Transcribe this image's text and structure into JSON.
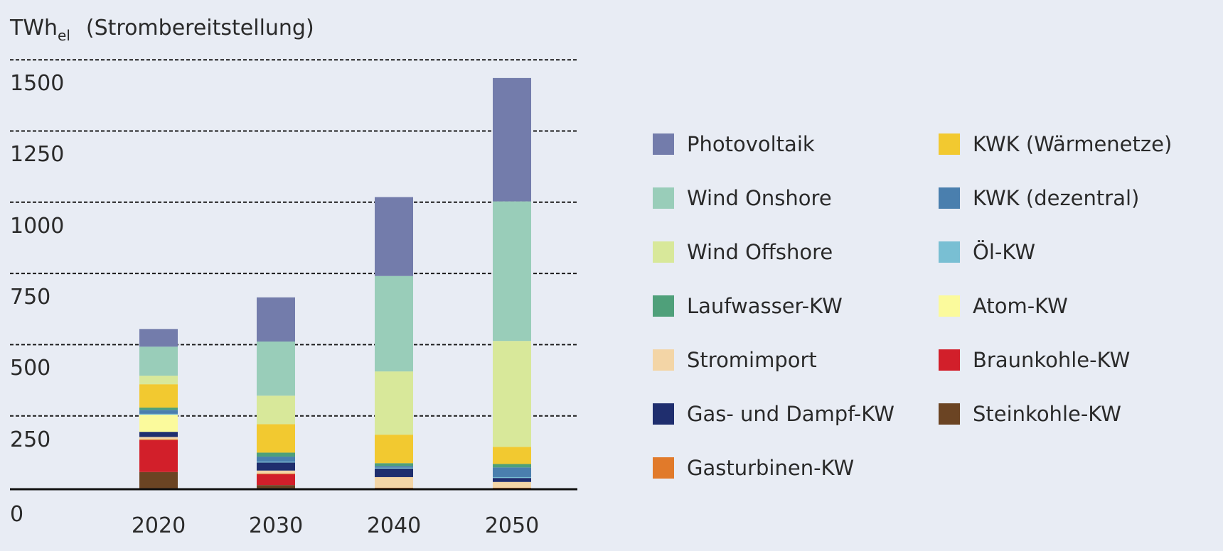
{
  "header": {
    "unit": "TWh",
    "unit_sub": "el",
    "subtitle": "(Strombereitstellung)"
  },
  "chart_data": {
    "type": "bar",
    "stacked": true,
    "categories": [
      "2020",
      "2030",
      "2040",
      "2050"
    ],
    "ylim": [
      0,
      1600
    ],
    "yticks": [
      0,
      250,
      500,
      750,
      1000,
      1250,
      1500
    ],
    "ytick_labels": [
      "0",
      "250",
      "500",
      "750",
      "1000",
      "1250",
      "1500"
    ],
    "grid": true,
    "legend_position": "right",
    "series": [
      {
        "name": "Steinkohle-KW",
        "color": "#6b4423",
        "values": [
          58,
          12,
          0,
          0
        ]
      },
      {
        "name": "Braunkohle-KW",
        "color": "#d21f2a",
        "values": [
          112,
          38,
          0,
          0
        ]
      },
      {
        "name": "Gasturbinen-KW",
        "color": "#e17a2a",
        "values": [
          3,
          3,
          3,
          3
        ]
      },
      {
        "name": "Stromimport",
        "color": "#f3d5a6",
        "values": [
          8,
          10,
          37,
          20
        ]
      },
      {
        "name": "Gas- und Dampf-KW",
        "color": "#1f2e6e",
        "values": [
          18,
          28,
          30,
          14
        ]
      },
      {
        "name": "Atom-KW",
        "color": "#fbfa9c",
        "values": [
          60,
          0,
          0,
          0
        ]
      },
      {
        "name": "Öl-KW",
        "color": "#79bfd3",
        "values": [
          3,
          3,
          3,
          3
        ]
      },
      {
        "name": "KWK (dezentral)",
        "color": "#4a7fae",
        "values": [
          14,
          18,
          6,
          34
        ]
      },
      {
        "name": "Laufwasser-KW",
        "color": "#4fa07a",
        "values": [
          8,
          14,
          10,
          12
        ]
      },
      {
        "name": "KWK (Wärmenetze)",
        "color": "#f2c930",
        "values": [
          82,
          100,
          100,
          60
        ]
      },
      {
        "name": "Wind Offshore",
        "color": "#d8e89a",
        "values": [
          30,
          100,
          222,
          372
        ]
      },
      {
        "name": "Wind Onshore",
        "color": "#99cdb9",
        "values": [
          102,
          190,
          335,
          490
        ]
      },
      {
        "name": "Photovoltaik",
        "color": "#737cab",
        "values": [
          62,
          155,
          277,
          433
        ]
      }
    ]
  },
  "legend": {
    "columns": [
      [
        "Photovoltaik",
        "Wind Onshore",
        "Wind Offshore",
        "Laufwasser-KW",
        "Stromimport",
        "Gas- und Dampf-KW",
        "Gasturbinen-KW"
      ],
      [
        "KWK (Wärmenetze)",
        "KWK (dezentral)",
        "Öl-KW",
        "Atom-KW",
        "Braunkohle-KW",
        "Steinkohle-KW"
      ]
    ]
  }
}
